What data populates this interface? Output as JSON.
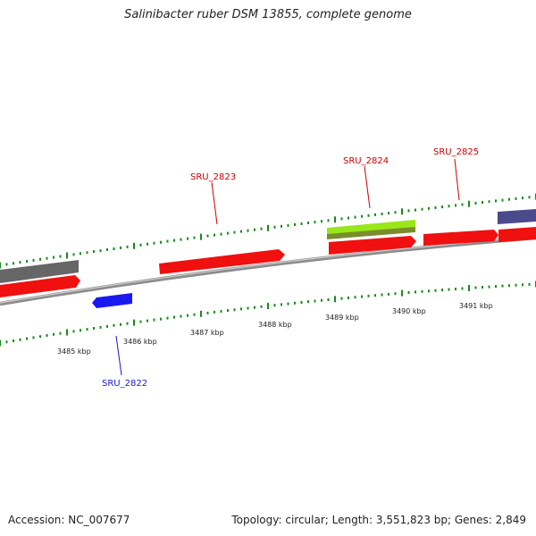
{
  "title": "Salinibacter ruber DSM 13855, complete genome",
  "footer": {
    "accession": "Accession: NC_007677",
    "summary": "Topology: circular; Length: 3,551,823 bp; Genes: 2,849"
  },
  "colors": {
    "backbone": "#8c8c8c",
    "tick": "#1a8a1a",
    "red": "#f01010",
    "grey": "#666666",
    "blue": "#1a1aee",
    "lime": "#99e619",
    "olive": "#7a8c2e",
    "purple": "#4a4a8c",
    "label_red": "#cc0000",
    "label_blue": "#1a1acc"
  },
  "scale_labels": [
    "3485 kbp",
    "3486 kbp",
    "3487 kbp",
    "3488 kbp",
    "3489 kbp",
    "3490 kbp",
    "3491 kbp"
  ],
  "gene_labels": [
    {
      "id": "SRU_2822",
      "color": "blue"
    },
    {
      "id": "SRU_2823",
      "color": "red"
    },
    {
      "id": "SRU_2824",
      "color": "red"
    },
    {
      "id": "SRU_2825",
      "color": "red"
    }
  ]
}
